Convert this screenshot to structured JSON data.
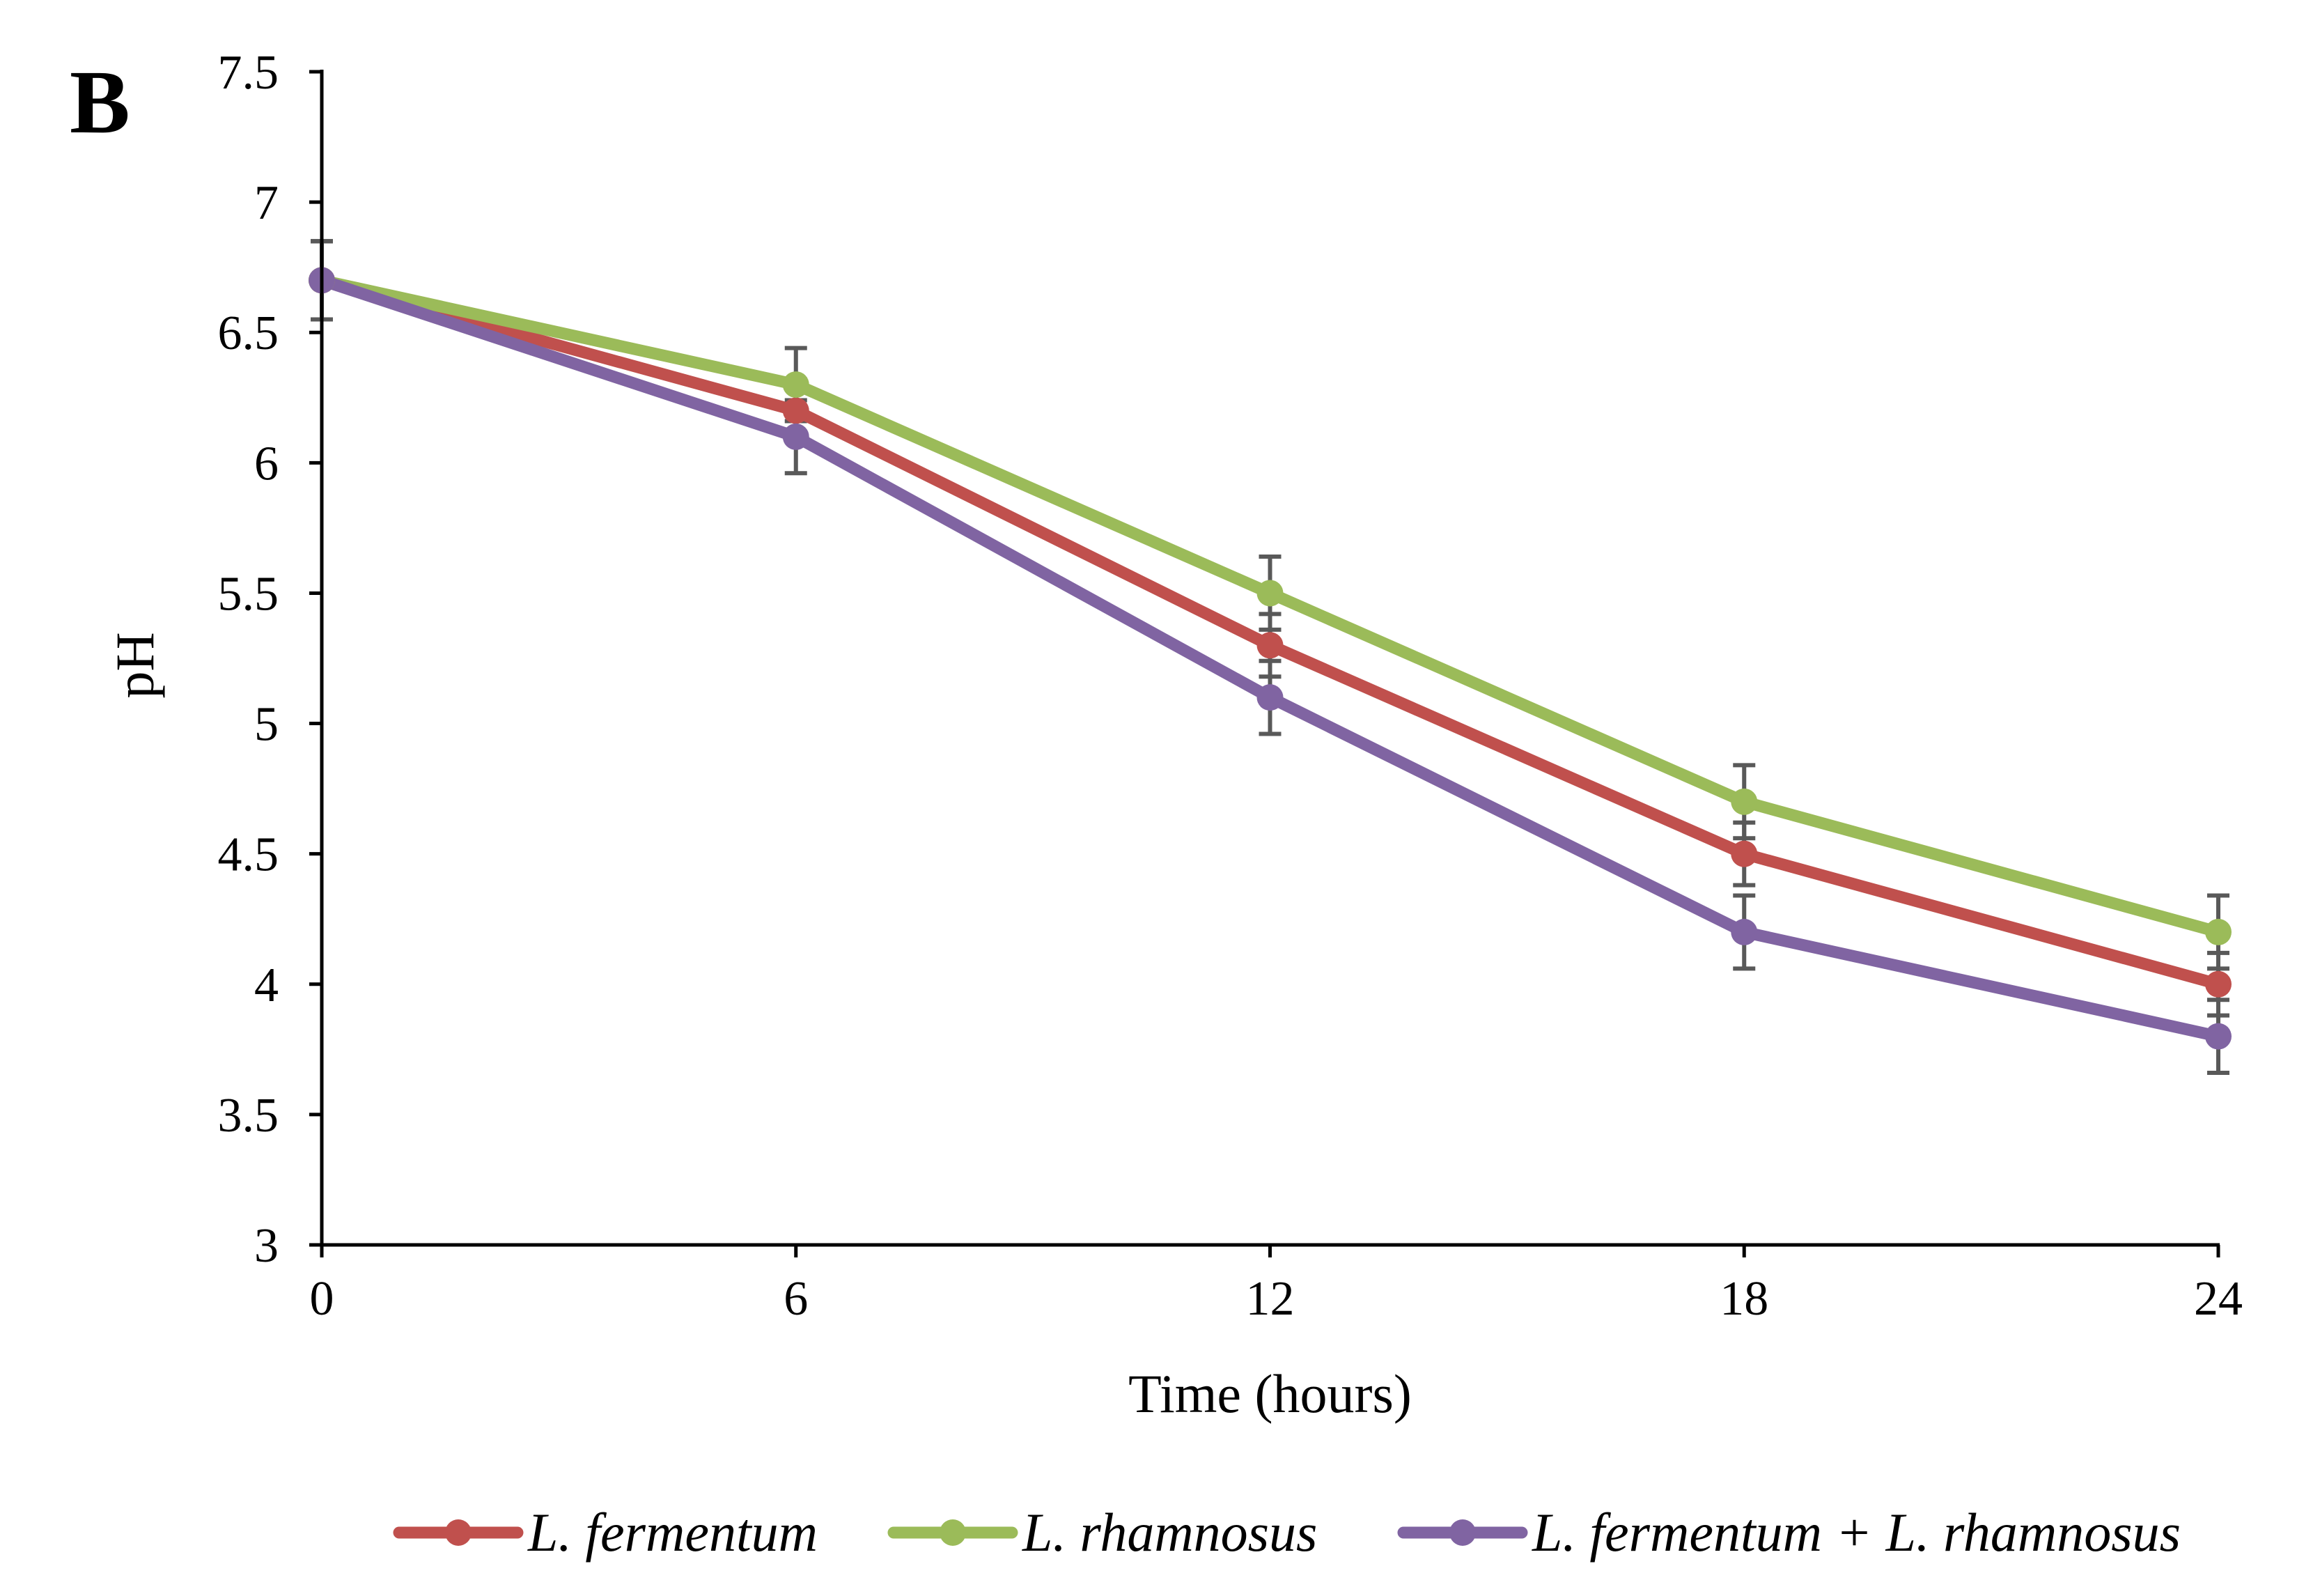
{
  "panel_label": "B",
  "colors": {
    "axis": "#000000",
    "error_bar": "#595959",
    "series": [
      "#C0504D",
      "#9BBB59",
      "#8064A2"
    ]
  },
  "chart_data": {
    "type": "line",
    "title": "",
    "xlabel": "Time (hours)",
    "ylabel": "pH",
    "x": [
      0,
      6,
      12,
      18,
      24
    ],
    "x_tick_labels": [
      "0",
      "6",
      "12",
      "18",
      "24"
    ],
    "xlim": [
      0,
      24
    ],
    "ylim": [
      3,
      7.5
    ],
    "y_ticks": [
      3,
      3.5,
      4,
      4.5,
      5,
      5.5,
      6,
      6.5,
      7,
      7.5
    ],
    "y_tick_labels": [
      "3",
      "3.5",
      "4",
      "4.5",
      "5",
      "5.5",
      "6",
      "6.5",
      "7",
      "7.5"
    ],
    "grid": false,
    "legend_position": "bottom",
    "series": [
      {
        "name": "L. fermentum",
        "color": "#C0504D",
        "values": [
          6.7,
          6.2,
          5.3,
          4.5,
          4.0
        ],
        "error": [
          0.15,
          0.12,
          0.12,
          0.12,
          0.12
        ]
      },
      {
        "name": "L. rhamnosus",
        "color": "#9BBB59",
        "values": [
          6.7,
          6.3,
          5.5,
          4.7,
          4.2
        ],
        "error": [
          0.15,
          0.14,
          0.14,
          0.14,
          0.14
        ]
      },
      {
        "name": "L. fermentum + L. rhamnosus",
        "color": "#8064A2",
        "values": [
          6.7,
          6.1,
          5.1,
          4.2,
          3.8
        ],
        "error": [
          0.15,
          0.14,
          0.14,
          0.14,
          0.14
        ]
      }
    ]
  }
}
